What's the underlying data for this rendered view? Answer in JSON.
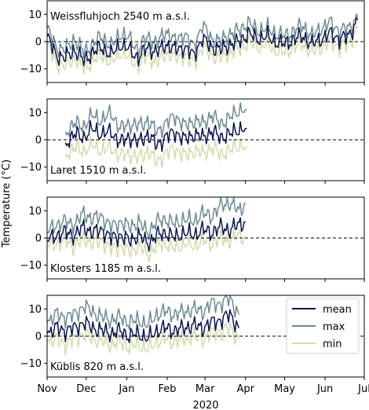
{
  "figure": {
    "ylabel": "Temperature (°C)",
    "xlabel": "2020"
  },
  "colors": {
    "mean": "#0b1551",
    "max": "#6e8b93",
    "min": "#d2dcaa",
    "zero_line": "#000000"
  },
  "chart_data": [
    {
      "type": "line",
      "title": "Weissfluhjoch 2540 m a.s.l.",
      "x_range": [
        "2019-11-01",
        "2020-07-01"
      ],
      "ylim": [
        -15,
        15
      ],
      "yticks": [
        -10,
        0,
        10
      ],
      "x_ticks": [
        "Nov",
        "Dec",
        "Jan",
        "Feb",
        "Mar",
        "Apr",
        "May",
        "Jun",
        "Jul"
      ],
      "reference_line": 0,
      "legend": false,
      "x": [
        "2019-11-01",
        "2019-11-08",
        "2019-11-15",
        "2019-11-22",
        "2019-11-29",
        "2019-12-06",
        "2019-12-13",
        "2019-12-20",
        "2019-12-27",
        "2020-01-03",
        "2020-01-10",
        "2020-01-17",
        "2020-01-24",
        "2020-01-31",
        "2020-02-07",
        "2020-02-14",
        "2020-02-21",
        "2020-02-28",
        "2020-03-06",
        "2020-03-13",
        "2020-03-20",
        "2020-03-27",
        "2020-04-03",
        "2020-04-10",
        "2020-04-17",
        "2020-04-24",
        "2020-05-01",
        "2020-05-08",
        "2020-05-15",
        "2020-05-22",
        "2020-05-29",
        "2020-06-05",
        "2020-06-12",
        "2020-06-19",
        "2020-06-26"
      ],
      "series": [
        {
          "name": "mean",
          "values": [
            2,
            -5,
            -6,
            -3,
            -7,
            -4,
            -2,
            -5,
            -1,
            -3,
            -6,
            -2,
            -4,
            -1,
            -3,
            -2,
            -5,
            1,
            -2,
            -3,
            -1,
            0,
            3,
            1,
            2,
            0,
            -1,
            1,
            2,
            -1,
            1,
            3,
            1,
            2,
            8
          ]
        },
        {
          "name": "max",
          "values": [
            5,
            -2,
            -3,
            1,
            -4,
            -1,
            2,
            -2,
            3,
            1,
            -3,
            2,
            -1,
            4,
            0,
            3,
            -2,
            6,
            1,
            0,
            3,
            4,
            7,
            4,
            5,
            3,
            2,
            4,
            6,
            2,
            5,
            7,
            4,
            5,
            9
          ]
        },
        {
          "name": "min",
          "values": [
            -1,
            -8,
            -9,
            -6,
            -10,
            -7,
            -5,
            -8,
            -4,
            -6,
            -9,
            -5,
            -8,
            -4,
            -6,
            -5,
            -8,
            -2,
            -5,
            -6,
            -4,
            -3,
            0,
            -2,
            -1,
            -3,
            -4,
            -2,
            -1,
            -4,
            -2,
            0,
            -2,
            -1,
            5
          ]
        }
      ]
    },
    {
      "type": "line",
      "title": "Laret 1510 m a.s.l.",
      "x_range": [
        "2019-11-01",
        "2020-07-01"
      ],
      "ylim": [
        -15,
        15
      ],
      "yticks": [
        -10,
        0,
        10
      ],
      "x_ticks": [
        "Nov",
        "Dec",
        "Jan",
        "Feb",
        "Mar",
        "Apr",
        "May",
        "Jun",
        "Jul"
      ],
      "reference_line": 0,
      "legend": false,
      "x": [
        "2019-11-15",
        "2019-11-22",
        "2019-11-29",
        "2019-12-06",
        "2019-12-13",
        "2019-12-20",
        "2019-12-27",
        "2020-01-03",
        "2020-01-10",
        "2020-01-17",
        "2020-01-24",
        "2020-01-31",
        "2020-02-07",
        "2020-02-14",
        "2020-02-21",
        "2020-02-28",
        "2020-03-06",
        "2020-03-13",
        "2020-03-20",
        "2020-03-27",
        "2020-04-02"
      ],
      "series": [
        {
          "name": "mean",
          "values": [
            -1,
            2,
            1,
            4,
            2,
            3,
            -1,
            1,
            -1,
            2,
            -2,
            1,
            3,
            0,
            2,
            1,
            3,
            1,
            2,
            4,
            4
          ]
        },
        {
          "name": "max",
          "values": [
            3,
            6,
            5,
            9,
            7,
            10,
            4,
            6,
            5,
            7,
            3,
            6,
            9,
            5,
            7,
            6,
            9,
            6,
            8,
            11,
            11
          ]
        },
        {
          "name": "min",
          "values": [
            -5,
            -3,
            -4,
            -2,
            -4,
            -3,
            -6,
            -5,
            -7,
            -4,
            -8,
            -5,
            -3,
            -6,
            -4,
            -5,
            -3,
            -5,
            -4,
            -2,
            -3
          ]
        }
      ]
    },
    {
      "type": "line",
      "title": "Klosters 1185 m a.s.l.",
      "x_range": [
        "2019-11-01",
        "2020-07-01"
      ],
      "ylim": [
        -15,
        15
      ],
      "yticks": [
        -10,
        0,
        10
      ],
      "x_ticks": [
        "Nov",
        "Dec",
        "Jan",
        "Feb",
        "Mar",
        "Apr",
        "May",
        "Jun",
        "Jul"
      ],
      "reference_line": 0,
      "legend": false,
      "x": [
        "2019-11-01",
        "2019-11-08",
        "2019-11-15",
        "2019-11-22",
        "2019-11-29",
        "2019-12-06",
        "2019-12-13",
        "2019-12-20",
        "2019-12-27",
        "2020-01-03",
        "2020-01-10",
        "2020-01-17",
        "2020-01-24",
        "2020-01-31",
        "2020-02-07",
        "2020-02-14",
        "2020-02-21",
        "2020-02-28",
        "2020-03-06",
        "2020-03-13",
        "2020-03-20",
        "2020-03-27",
        "2020-04-01"
      ],
      "series": [
        {
          "name": "mean",
          "values": [
            -1,
            1,
            2,
            1,
            4,
            2,
            3,
            0,
            1,
            -1,
            1,
            -2,
            1,
            2,
            0,
            2,
            1,
            3,
            2,
            4,
            3,
            5,
            6
          ]
        },
        {
          "name": "max",
          "values": [
            2,
            5,
            6,
            5,
            9,
            7,
            8,
            4,
            6,
            4,
            6,
            2,
            6,
            7,
            5,
            7,
            6,
            9,
            8,
            12,
            13,
            10,
            13
          ]
        },
        {
          "name": "min",
          "values": [
            -3,
            -2,
            -1,
            -3,
            0,
            -2,
            -1,
            -4,
            -3,
            -5,
            -3,
            -6,
            -3,
            -2,
            -4,
            -2,
            -3,
            -1,
            -2,
            0,
            -1,
            1,
            0
          ]
        }
      ]
    },
    {
      "type": "line",
      "title": "Küblis 820 m a.s.l.",
      "x_range": [
        "2019-11-01",
        "2020-07-01"
      ],
      "ylim": [
        -15,
        15
      ],
      "yticks": [
        -10,
        0,
        10
      ],
      "x_ticks": [
        "Nov",
        "Dec",
        "Jan",
        "Feb",
        "Mar",
        "Apr",
        "May",
        "Jun",
        "Jul"
      ],
      "reference_line": 0,
      "legend": true,
      "legend_position": "upper right",
      "x": [
        "2019-11-01",
        "2019-11-08",
        "2019-11-15",
        "2019-11-22",
        "2019-11-29",
        "2019-12-06",
        "2019-12-13",
        "2019-12-20",
        "2019-12-27",
        "2020-01-03",
        "2020-01-10",
        "2020-01-17",
        "2020-01-24",
        "2020-01-31",
        "2020-02-07",
        "2020-02-14",
        "2020-02-21",
        "2020-02-28",
        "2020-03-06",
        "2020-03-13",
        "2020-03-20",
        "2020-03-27"
      ],
      "series": [
        {
          "name": "mean",
          "values": [
            1,
            3,
            2,
            3,
            5,
            3,
            2,
            1,
            2,
            0,
            1,
            -1,
            2,
            3,
            2,
            3,
            4,
            3,
            5,
            6,
            8,
            3
          ]
        },
        {
          "name": "max",
          "values": [
            5,
            8,
            7,
            8,
            11,
            9,
            7,
            6,
            7,
            5,
            6,
            4,
            8,
            9,
            8,
            9,
            10,
            9,
            12,
            12,
            14,
            8
          ]
        },
        {
          "name": "min",
          "values": [
            -2,
            -1,
            -3,
            -1,
            1,
            -1,
            -2,
            -3,
            -2,
            -4,
            -3,
            -5,
            -2,
            -1,
            -2,
            -1,
            0,
            -1,
            1,
            2,
            3,
            -1
          ]
        }
      ]
    }
  ]
}
